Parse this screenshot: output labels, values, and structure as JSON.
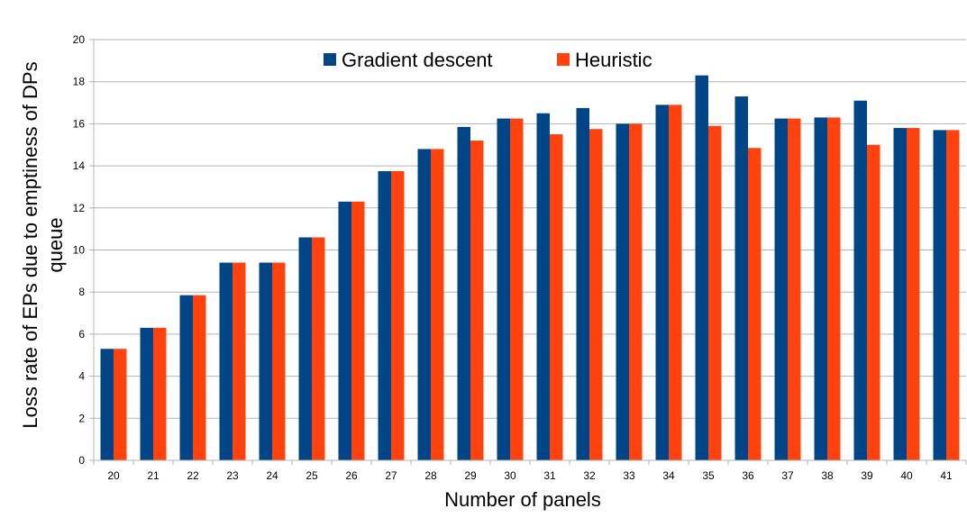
{
  "chart_data": {
    "type": "bar",
    "title": "",
    "xlabel": "Number of panels",
    "ylabel_lines": [
      "Loss rate of EPs due to emptiness of DPs",
      "queue"
    ],
    "categories": [
      "20",
      "21",
      "22",
      "23",
      "24",
      "25",
      "26",
      "27",
      "28",
      "29",
      "30",
      "31",
      "32",
      "33",
      "34",
      "35",
      "36",
      "37",
      "38",
      "39",
      "40",
      "41"
    ],
    "ylim": [
      0,
      20
    ],
    "yticks": [
      0,
      2,
      4,
      6,
      8,
      10,
      12,
      14,
      16,
      18,
      20
    ],
    "grid": true,
    "legend_position": "top-center",
    "series": [
      {
        "name": "Gradient descent",
        "color": "#004586",
        "values": [
          5.3,
          6.3,
          7.85,
          9.4,
          9.4,
          10.6,
          12.3,
          13.75,
          14.8,
          15.85,
          16.25,
          16.5,
          16.75,
          16.0,
          16.9,
          18.3,
          17.3,
          16.25,
          16.3,
          17.1,
          15.8,
          15.7
        ]
      },
      {
        "name": "Heuristic",
        "color": "#ff420e",
        "values": [
          5.3,
          6.3,
          7.85,
          9.4,
          9.4,
          10.6,
          12.3,
          13.75,
          14.8,
          15.2,
          16.25,
          15.5,
          15.75,
          16.0,
          16.9,
          15.9,
          14.85,
          16.25,
          16.3,
          15.0,
          15.8,
          15.7
        ]
      }
    ]
  }
}
